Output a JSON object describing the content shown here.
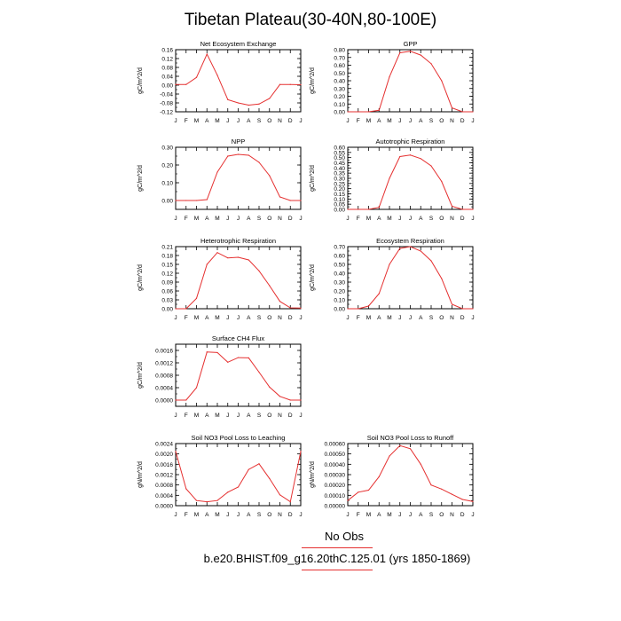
{
  "title": "Tibetan Plateau(30-40N,80-100E)",
  "legend_label": "No Obs",
  "case_label": "b.e20.BHIST.f09_g16.20thC.125.01 (yrs 1850-1869)",
  "colors": {
    "line": "#e53030",
    "axis": "#000000"
  },
  "chart_data": [
    {
      "type": "line",
      "title": "Net Ecosystem Exchange",
      "ylabel": "gC/m^2/d",
      "x": [
        "J",
        "F",
        "M",
        "A",
        "M",
        "J",
        "J",
        "A",
        "S",
        "O",
        "N",
        "D",
        "J"
      ],
      "ylim": [
        -0.12,
        0.16
      ],
      "yticks": [
        "-0.12",
        "-0.08",
        "-0.04",
        "0.00",
        "0.04",
        "0.08",
        "0.12",
        "0.16"
      ],
      "tick_values": [
        -0.12,
        -0.08,
        -0.04,
        0,
        0.04,
        0.08,
        0.12,
        0.16
      ],
      "minor_step": 0.02,
      "values": [
        0.003,
        0.003,
        0.035,
        0.14,
        0.045,
        -0.065,
        -0.08,
        -0.09,
        -0.085,
        -0.06,
        0.003,
        0.003,
        0.002
      ]
    },
    {
      "type": "line",
      "title": "GPP",
      "ylabel": "gC/m^2/d",
      "x": [
        "J",
        "F",
        "M",
        "A",
        "M",
        "J",
        "J",
        "A",
        "S",
        "O",
        "N",
        "D",
        "J"
      ],
      "ylim": [
        0,
        0.8
      ],
      "yticks": [
        "0.00",
        "0.10",
        "0.20",
        "0.30",
        "0.40",
        "0.50",
        "0.60",
        "0.70",
        "0.80"
      ],
      "tick_values": [
        0,
        0.1,
        0.2,
        0.3,
        0.4,
        0.5,
        0.6,
        0.7,
        0.8
      ],
      "minor_step": 0.05,
      "values": [
        0.0,
        0.0,
        0.0,
        0.02,
        0.45,
        0.76,
        0.78,
        0.73,
        0.62,
        0.4,
        0.05,
        0.0,
        0.0
      ]
    },
    {
      "type": "line",
      "title": "NPP",
      "ylabel": "gC/m^2/d",
      "x": [
        "J",
        "F",
        "M",
        "A",
        "M",
        "J",
        "J",
        "A",
        "S",
        "O",
        "N",
        "D",
        "J"
      ],
      "ylim": [
        -0.05,
        0.3
      ],
      "yticks": [
        "0.00",
        "0.10",
        "0.20",
        "0.30"
      ],
      "tick_values": [
        0,
        0.1,
        0.2,
        0.3
      ],
      "minor_step": 0.05,
      "values": [
        0.0,
        0.0,
        0.0,
        0.005,
        0.16,
        0.25,
        0.26,
        0.255,
        0.215,
        0.14,
        0.02,
        0.0,
        0.0
      ]
    },
    {
      "type": "line",
      "title": "Autotrophic Respiration",
      "ylabel": "gC/m^2/d",
      "x": [
        "J",
        "F",
        "M",
        "A",
        "M",
        "J",
        "J",
        "A",
        "S",
        "O",
        "N",
        "D",
        "J"
      ],
      "ylim": [
        0,
        0.6
      ],
      "yticks": [
        "0.00",
        "0.05",
        "0.10",
        "0.15",
        "0.20",
        "0.25",
        "0.30",
        "0.35",
        "0.40",
        "0.45",
        "0.50",
        "0.55",
        "0.60"
      ],
      "tick_values": [
        0,
        0.05,
        0.1,
        0.15,
        0.2,
        0.25,
        0.3,
        0.35,
        0.4,
        0.45,
        0.5,
        0.55,
        0.6
      ],
      "minor_step": 0.025,
      "values": [
        0.0,
        0.0,
        0.0,
        0.02,
        0.3,
        0.51,
        0.525,
        0.49,
        0.42,
        0.27,
        0.03,
        0.0,
        0.0
      ]
    },
    {
      "type": "line",
      "title": "Heterotrophic Respiration",
      "ylabel": "gC/m^2/d",
      "x": [
        "J",
        "F",
        "M",
        "A",
        "M",
        "J",
        "J",
        "A",
        "S",
        "O",
        "N",
        "D",
        "J"
      ],
      "ylim": [
        0,
        0.21
      ],
      "yticks": [
        "0.00",
        "0.03",
        "0.06",
        "0.09",
        "0.12",
        "0.15",
        "0.18",
        "0.21"
      ],
      "tick_values": [
        0,
        0.03,
        0.06,
        0.09,
        0.12,
        0.15,
        0.18,
        0.21
      ],
      "minor_step": 0.015,
      "values": [
        0.0,
        0.0,
        0.035,
        0.15,
        0.19,
        0.172,
        0.174,
        0.165,
        0.128,
        0.078,
        0.025,
        0.003,
        0.002
      ]
    },
    {
      "type": "line",
      "title": "Ecosystem Respiration",
      "ylabel": "gC/m^2/d",
      "x": [
        "J",
        "F",
        "M",
        "A",
        "M",
        "J",
        "J",
        "A",
        "S",
        "O",
        "N",
        "D",
        "J"
      ],
      "ylim": [
        0,
        0.7
      ],
      "yticks": [
        "0.00",
        "0.10",
        "0.20",
        "0.30",
        "0.40",
        "0.50",
        "0.60",
        "0.70"
      ],
      "tick_values": [
        0,
        0.1,
        0.2,
        0.3,
        0.4,
        0.5,
        0.6,
        0.7
      ],
      "minor_step": 0.05,
      "values": [
        0.0,
        0.0,
        0.03,
        0.17,
        0.5,
        0.68,
        0.7,
        0.65,
        0.54,
        0.34,
        0.05,
        0.0,
        0.0
      ]
    },
    {
      "type": "line",
      "title": "Surface CH4 Flux",
      "ylabel": "gC/m^2/d",
      "x": [
        "J",
        "F",
        "M",
        "A",
        "M",
        "J",
        "J",
        "A",
        "S",
        "O",
        "N",
        "D",
        "J"
      ],
      "ylim": [
        -0.0002,
        0.0018
      ],
      "yticks": [
        "0.0000",
        "0.0004",
        "0.0008",
        "0.0012",
        "0.0016"
      ],
      "tick_values": [
        0,
        0.0004,
        0.0008,
        0.0012,
        0.0016
      ],
      "minor_step": 0.0002,
      "values": [
        0.0,
        0.0,
        0.0004,
        0.00155,
        0.00153,
        0.00122,
        0.00137,
        0.00136,
        0.0009,
        0.00042,
        0.00012,
        0.0,
        0.0
      ]
    },
    {
      "type": "line",
      "title": "Soil NO3 Pool Loss to Leaching",
      "ylabel": "gN/m^2/d",
      "x": [
        "J",
        "F",
        "M",
        "A",
        "M",
        "J",
        "J",
        "A",
        "S",
        "O",
        "N",
        "D",
        "J"
      ],
      "ylim": [
        0,
        0.0024
      ],
      "yticks": [
        "0.0000",
        "0.0004",
        "0.0008",
        "0.0012",
        "0.0016",
        "0.0020",
        "0.0024"
      ],
      "tick_values": [
        0,
        0.0004,
        0.0008,
        0.0012,
        0.0016,
        0.002,
        0.0024
      ],
      "minor_step": 0.0002,
      "values": [
        0.0021,
        0.00065,
        0.0002,
        0.00015,
        0.0002,
        0.00052,
        0.00072,
        0.0014,
        0.00162,
        0.00105,
        0.00042,
        0.00015,
        0.0021
      ]
    },
    {
      "type": "line",
      "title": "Soil NO3 Pool Loss to Runoff",
      "ylabel": "gN/m^2/d",
      "x": [
        "J",
        "F",
        "M",
        "A",
        "M",
        "J",
        "J",
        "A",
        "S",
        "O",
        "N",
        "D",
        "J"
      ],
      "ylim": [
        0,
        0.0006
      ],
      "yticks": [
        "0.00000",
        "0.00010",
        "0.00020",
        "0.00030",
        "0.00040",
        "0.00050",
        "0.00060"
      ],
      "tick_values": [
        0,
        0.0001,
        0.0002,
        0.0003,
        0.0004,
        0.0005,
        0.0006
      ],
      "minor_step": 5e-05,
      "values": [
        5e-05,
        0.00013,
        0.00015,
        0.00028,
        0.00048,
        0.00058,
        0.00055,
        0.0004,
        0.0002,
        0.00016,
        0.00011,
        6e-05,
        4e-05
      ]
    }
  ]
}
